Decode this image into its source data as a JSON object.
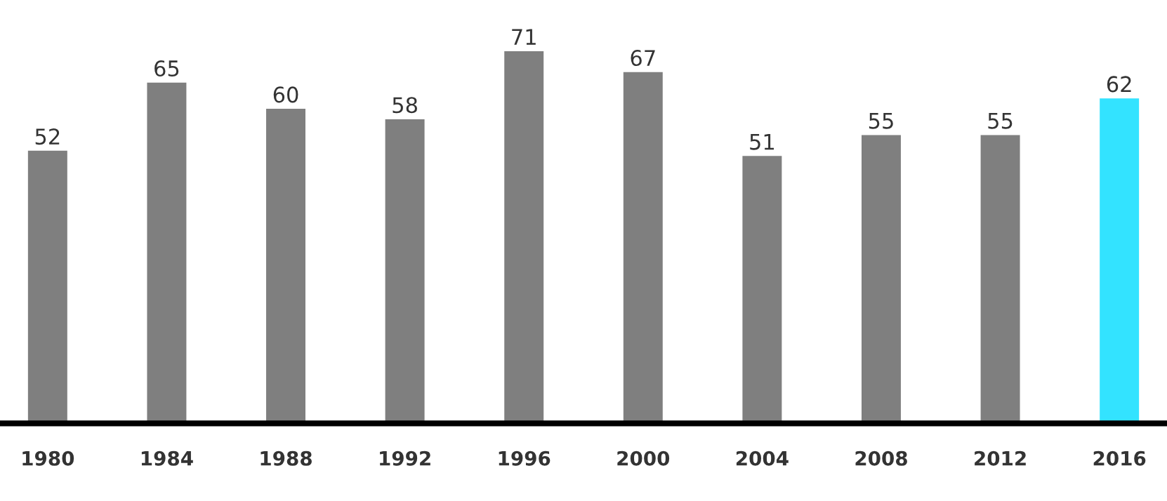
{
  "chart_data": {
    "type": "bar",
    "categories": [
      "1980",
      "1984",
      "1988",
      "1992",
      "1996",
      "2000",
      "2004",
      "2008",
      "2012",
      "2016"
    ],
    "values": [
      52,
      65,
      60,
      58,
      71,
      67,
      51,
      55,
      55,
      62
    ],
    "colors": [
      "#7f7f7f",
      "#7f7f7f",
      "#7f7f7f",
      "#7f7f7f",
      "#7f7f7f",
      "#7f7f7f",
      "#7f7f7f",
      "#7f7f7f",
      "#7f7f7f",
      "#33e3ff"
    ],
    "data_labels": true,
    "grid": false,
    "legend": false,
    "tick_labels": "x"
  }
}
